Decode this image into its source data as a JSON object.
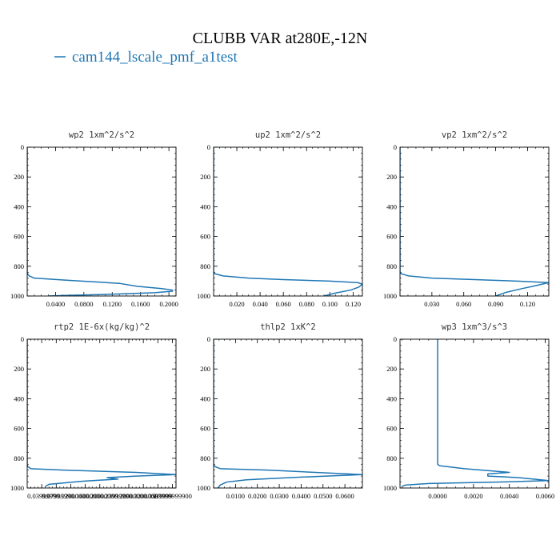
{
  "figure": {
    "title": "CLUBB VAR at280E,-12N",
    "legend": {
      "label": "cam144_lscale_pmf_a1test",
      "color": "#1f77b4"
    }
  },
  "chart_data": [
    {
      "type": "line",
      "title": "wp2   1xm^2/s^2",
      "xlim": [
        0.0,
        0.21
      ],
      "ylim": [
        0,
        1000
      ],
      "y_inverted": true,
      "xticks": [
        0.04,
        0.08,
        0.12,
        0.16,
        0.2
      ],
      "xtick_labels": [
        "0.0400",
        "0.0800",
        "0.1200",
        "0.1600",
        "0.2000"
      ],
      "yticks": [
        0,
        200,
        400,
        600,
        800,
        1000
      ],
      "ytick_labels": [
        "0",
        "200",
        "400",
        "600",
        "800",
        "1000"
      ],
      "series": [
        {
          "color": "#1f77b4",
          "x": [
            0,
            0,
            0.001,
            0.003,
            0.01,
            0.06,
            0.13,
            0.155,
            0.19,
            0.205,
            0.205,
            0.18,
            0.12,
            0.06,
            0.03
          ],
          "y": [
            0,
            840,
            855,
            865,
            880,
            895,
            915,
            935,
            950,
            960,
            968,
            978,
            988,
            995,
            1000
          ]
        }
      ]
    },
    {
      "type": "line",
      "title": "up2   1xm^2/s^2",
      "xlim": [
        0.0,
        0.128
      ],
      "ylim": [
        0,
        1000
      ],
      "y_inverted": true,
      "xticks": [
        0.02,
        0.04,
        0.06,
        0.08,
        0.1,
        0.12
      ],
      "xtick_labels": [
        "0.020",
        "0.040",
        "0.060",
        "0.080",
        "0.100",
        "0.120"
      ],
      "yticks": [
        0,
        200,
        400,
        600,
        800,
        1000
      ],
      "ytick_labels": [
        "0",
        "200",
        "400",
        "600",
        "800",
        "1000"
      ],
      "series": [
        {
          "color": "#1f77b4",
          "x": [
            0,
            0,
            0.001,
            0.008,
            0.03,
            0.06,
            0.1,
            0.124,
            0.128,
            0.125,
            0.118,
            0.105,
            0.095
          ],
          "y": [
            0,
            840,
            850,
            865,
            880,
            890,
            900,
            910,
            920,
            940,
            960,
            980,
            1000
          ]
        }
      ]
    },
    {
      "type": "line",
      "title": "vp2   1xm^2/s^2",
      "xlim": [
        0.0,
        0.14
      ],
      "ylim": [
        0,
        1000
      ],
      "y_inverted": true,
      "xticks": [
        0.03,
        0.06,
        0.09,
        0.12
      ],
      "xtick_labels": [
        "0.030",
        "0.060",
        "0.090",
        "0.120"
      ],
      "yticks": [
        0,
        200,
        400,
        600,
        800,
        1000
      ],
      "ytick_labels": [
        "0",
        "200",
        "400",
        "600",
        "800",
        "1000"
      ],
      "series": [
        {
          "color": "#1f77b4",
          "x": [
            0,
            0,
            0.001,
            0.008,
            0.03,
            0.07,
            0.11,
            0.14,
            0.128,
            0.115,
            0.1,
            0.09
          ],
          "y": [
            0,
            840,
            850,
            865,
            880,
            890,
            900,
            910,
            930,
            950,
            975,
            1000
          ]
        }
      ]
    },
    {
      "type": "line",
      "title": "rtp2   1E-6x(kg/kg)^2",
      "xlim": [
        0.0,
        0.41
      ],
      "ylim": [
        0,
        1000
      ],
      "y_inverted": true,
      "xticks": [
        0.04,
        0.08,
        0.12,
        0.16,
        0.2,
        0.24,
        0.28,
        0.32,
        0.36,
        0.4
      ],
      "xtick_labels": [
        "0.0399999",
        "0.0799999",
        "0.1200000",
        "0.1600000",
        "0.2000000",
        "0.2399999",
        "0.2800000",
        "0.3200000",
        "0.3599999",
        "0.3999999900"
      ],
      "yticks": [
        0,
        200,
        400,
        600,
        800,
        1000
      ],
      "ytick_labels": [
        "0",
        "200",
        "400",
        "600",
        "800",
        "1000"
      ],
      "series": [
        {
          "color": "#1f77b4",
          "x": [
            0,
            0,
            0.001,
            0.01,
            0.1,
            0.3,
            0.41,
            0.3,
            0.22,
            0.25,
            0.15,
            0.06,
            0.05
          ],
          "y": [
            0,
            840,
            855,
            870,
            880,
            895,
            910,
            920,
            930,
            940,
            955,
            975,
            990
          ]
        }
      ]
    },
    {
      "type": "line",
      "title": "thlp2   1xK^2",
      "xlim": [
        0.0,
        0.068
      ],
      "ylim": [
        0,
        1000
      ],
      "y_inverted": true,
      "xticks": [
        0.01,
        0.02,
        0.03,
        0.04,
        0.05,
        0.06
      ],
      "xtick_labels": [
        "0.0100",
        "0.0200",
        "0.0300",
        "0.0400",
        "0.0500",
        "0.0600"
      ],
      "yticks": [
        0,
        200,
        400,
        600,
        800,
        1000
      ],
      "ytick_labels": [
        "0",
        "200",
        "400",
        "600",
        "800",
        "1000"
      ],
      "series": [
        {
          "color": "#1f77b4",
          "x": [
            0,
            0,
            0.0005,
            0.003,
            0.025,
            0.068,
            0.035,
            0.015,
            0.006,
            0.003,
            0.002
          ],
          "y": [
            0,
            840,
            855,
            870,
            880,
            910,
            930,
            945,
            960,
            980,
            1000
          ]
        }
      ]
    },
    {
      "type": "line",
      "title": "wp3   1xm^3/s^3",
      "xlim": [
        -0.0021,
        0.0062
      ],
      "ylim": [
        0,
        1000
      ],
      "y_inverted": true,
      "xticks": [
        0.0,
        0.002,
        0.004,
        0.006
      ],
      "xtick_labels": [
        "0.0000",
        "0.0020",
        "0.0040",
        "0.0060"
      ],
      "yticks": [
        0,
        200,
        400,
        600,
        800,
        1000
      ],
      "ytick_labels": [
        "0",
        "200",
        "400",
        "600",
        "800",
        "1000"
      ],
      "series": [
        {
          "color": "#1f77b4",
          "x": [
            0,
            0,
            0.0001,
            0.0015,
            0.004,
            0.0028,
            0.0028,
            0.0045,
            0.0062,
            0.0035,
            -0.0005,
            -0.0018,
            -0.002
          ],
          "y": [
            0,
            840,
            850,
            870,
            895,
            905,
            920,
            930,
            950,
            960,
            970,
            980,
            990
          ]
        }
      ]
    }
  ]
}
